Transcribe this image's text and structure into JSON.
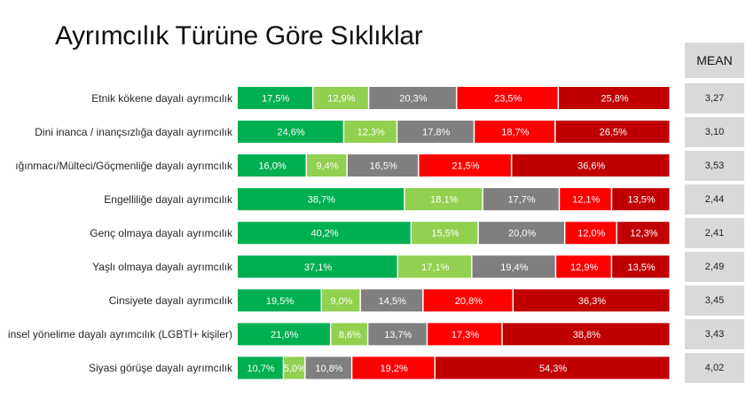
{
  "title": "Ayrımcılık Türüne Göre Sıklıklar",
  "mean_header": "MEAN",
  "chart_data": {
    "type": "bar",
    "orientation": "horizontal",
    "stacked": true,
    "normalized": true,
    "categories": [
      "Etnik kökene dayalı ayrımcılık",
      "Dini inanca / inançsızlığa dayalı ayrımcılık",
      "ığınmacı/Mülteci/Göçmenliğe dayalı ayrımcılık",
      "Engelliliğe dayalı ayrımcılık",
      "Genç olmaya dayalı ayrımcılık",
      "Yaşlı olmaya dayalı ayrımcılık",
      "Cinsiyete dayalı ayrımcılık",
      "insel yönelime dayalı ayrımcılık (LGBTİ+ kişiler)",
      "Siyasi görüşe dayalı ayrımcılık"
    ],
    "series": [
      {
        "color": "#00b050",
        "values": [
          17.5,
          24.6,
          16.0,
          38.7,
          40.2,
          37.1,
          19.5,
          21.6,
          10.7
        ]
      },
      {
        "color": "#92d050",
        "values": [
          12.9,
          12.3,
          9.4,
          18.1,
          15.5,
          17.1,
          9.0,
          8.6,
          5.0
        ]
      },
      {
        "color": "#7f7f7f",
        "values": [
          20.3,
          17.8,
          16.5,
          17.7,
          20.0,
          19.4,
          14.5,
          13.7,
          10.8
        ]
      },
      {
        "color": "#ff0000",
        "values": [
          23.5,
          18.7,
          21.5,
          12.1,
          12.0,
          12.9,
          20.8,
          17.3,
          19.2
        ]
      },
      {
        "color": "#c00000",
        "values": [
          25.8,
          26.5,
          36.6,
          13.5,
          12.3,
          13.5,
          36.3,
          38.8,
          54.3
        ]
      }
    ],
    "data_labels": [
      [
        "17,5%",
        "12,9%",
        "20,3%",
        "23,5%",
        "25,8%"
      ],
      [
        "24,6%",
        "12,3%",
        "17,8%",
        "18,7%",
        "26,5%"
      ],
      [
        "16,0%",
        "9,4%",
        "16,5%",
        "21,5%",
        "36,6%"
      ],
      [
        "38,7%",
        "18,1%",
        "17,7%",
        "12,1%",
        "13,5%"
      ],
      [
        "40,2%",
        "15,5%",
        "20,0%",
        "12,0%",
        "12,3%"
      ],
      [
        "37,1%",
        "17,1%",
        "19,4%",
        "12,9%",
        "13,5%"
      ],
      [
        "19,5%",
        "9,0%",
        "14,5%",
        "20,8%",
        "36,3%"
      ],
      [
        "21,6%",
        "8,6%",
        "13,7%",
        "17,3%",
        "38,8%"
      ],
      [
        "10,7%",
        "5,0%",
        "10,8%",
        "19,2%",
        "54,3%"
      ]
    ],
    "mean": [
      "3,27",
      "3,10",
      "3,53",
      "2,44",
      "2,41",
      "2,49",
      "3,45",
      "3,43",
      "4,02"
    ],
    "xlim": [
      0,
      100
    ],
    "grid": false,
    "legend": "none"
  }
}
